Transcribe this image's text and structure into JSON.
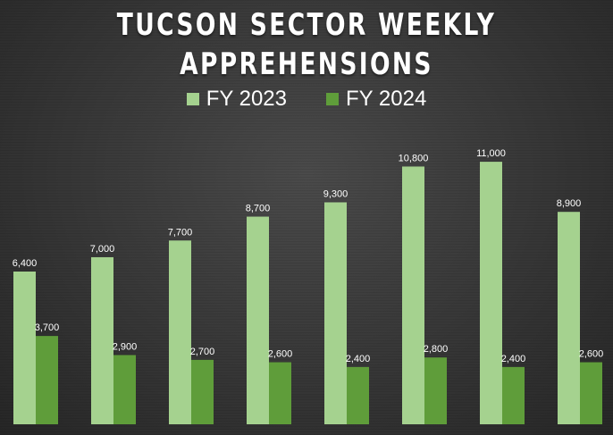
{
  "chart_data": {
    "type": "bar",
    "title_lines": [
      "TUCSON SECTOR WEEKLY",
      "APPREHENSIONS"
    ],
    "categories": [
      "",
      "",
      "",
      "",
      "",
      "",
      "",
      ""
    ],
    "series": [
      {
        "name": "FY 2023",
        "color": "#a5d28f",
        "values": [
          6400,
          7000,
          7700,
          8700,
          9300,
          10800,
          11000,
          8900
        ]
      },
      {
        "name": "FY 2024",
        "color": "#5f9d3a",
        "values": [
          3700,
          2900,
          2700,
          2600,
          2400,
          2800,
          2400,
          2600
        ]
      }
    ],
    "data_labels": [
      [
        "6,400",
        "7,000",
        "7,700",
        "8,700",
        "9,300",
        "10,800",
        "11,000",
        "8,900"
      ],
      [
        "3,700",
        "2,900",
        "2,700",
        "2,600",
        "2,400",
        "2,800",
        "2,400",
        "2,600"
      ]
    ],
    "xlabel": "",
    "ylabel": "",
    "ylim": [
      0,
      12800
    ],
    "grid": false,
    "legend_position": "top-center"
  }
}
